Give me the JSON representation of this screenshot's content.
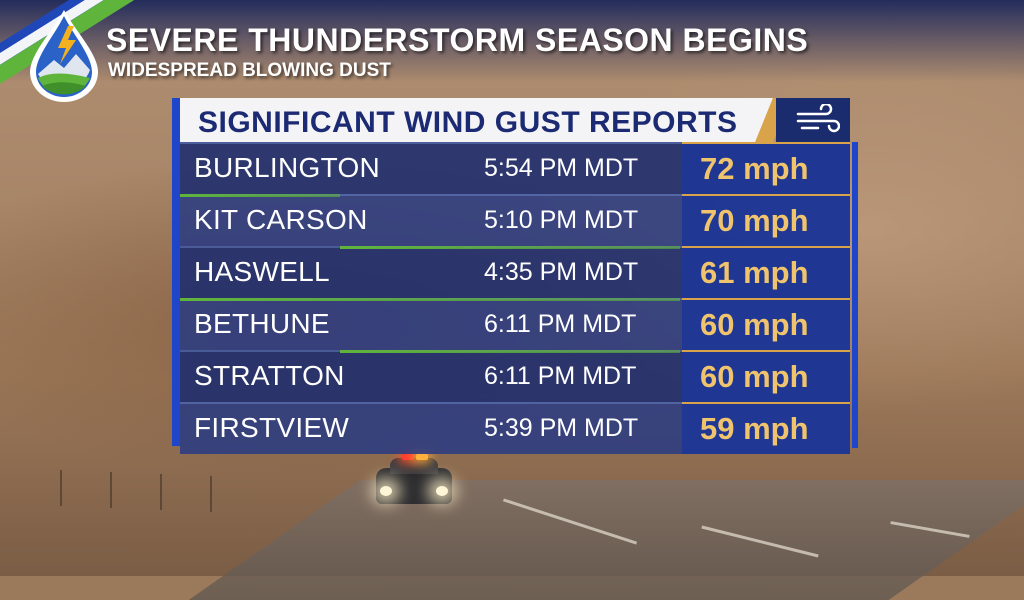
{
  "header": {
    "title": "SEVERE THUNDERSTORM SEASON BEGINS",
    "subtitle": "WIDESPREAD BLOWING DUST"
  },
  "panel": {
    "title": "SIGNIFICANT WIND GUST REPORTS",
    "icon": "wind-icon",
    "rows": [
      {
        "city": "BURLINGTON",
        "time": "5:54 PM MDT",
        "speed": "72 mph"
      },
      {
        "city": "KIT CARSON",
        "time": "5:10 PM MDT",
        "speed": "70 mph"
      },
      {
        "city": "HASWELL",
        "time": "4:35 PM MDT",
        "speed": "61 mph"
      },
      {
        "city": "BETHUNE",
        "time": "6:11 PM MDT",
        "speed": "60 mph"
      },
      {
        "city": "STRATTON",
        "time": "6:11 PM MDT",
        "speed": "60 mph"
      },
      {
        "city": "FIRSTVIEW",
        "time": "5:39 PM MDT",
        "speed": "59 mph"
      }
    ]
  },
  "colors": {
    "navy": "#1b2a72",
    "accent_blue": "#1f46c9",
    "gold": "#f0c46d",
    "green": "#5fb53c"
  }
}
